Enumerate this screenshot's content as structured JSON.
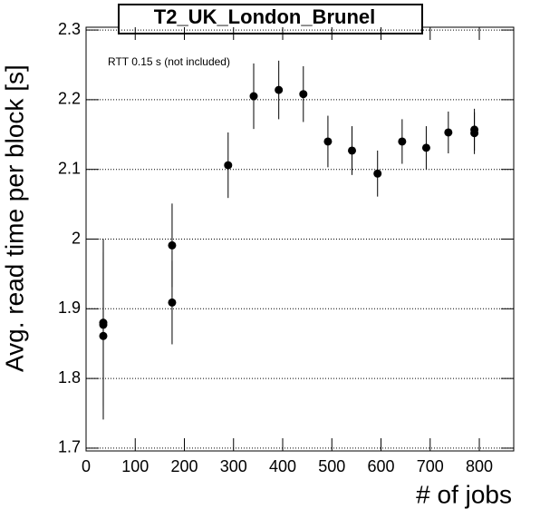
{
  "chart_data": {
    "type": "scatter",
    "title": "T2_UK_London_Brunel",
    "annotation": "RTT 0.15 s (not included)",
    "x_label": "# of jobs",
    "y_label": "Avg. read time per block [s]",
    "x": [
      35,
      35,
      35,
      175,
      175,
      289,
      341,
      392,
      442,
      492,
      541,
      593,
      643,
      692,
      737,
      790,
      790
    ],
    "values": [
      1.88,
      1.877,
      1.861,
      1.991,
      1.909,
      2.106,
      2.205,
      2.214,
      2.208,
      2.14,
      2.127,
      2.094,
      2.14,
      2.131,
      2.153,
      2.157,
      2.152
    ],
    "errors": [
      0.12,
      0.12,
      0.12,
      0.06,
      0.06,
      0.047,
      0.047,
      0.042,
      0.04,
      0.037,
      0.035,
      0.033,
      0.032,
      0.031,
      0.03,
      0.03,
      0.03
    ],
    "color": "#000000",
    "xlim": [
      0,
      870
    ],
    "ylim": [
      1.696,
      2.304
    ],
    "xticks": [
      0,
      100,
      200,
      300,
      400,
      500,
      600,
      700,
      800
    ],
    "yticks": [
      1.7,
      1.8,
      1.9,
      2,
      2.1,
      2.2,
      2.3
    ],
    "grid": true
  }
}
